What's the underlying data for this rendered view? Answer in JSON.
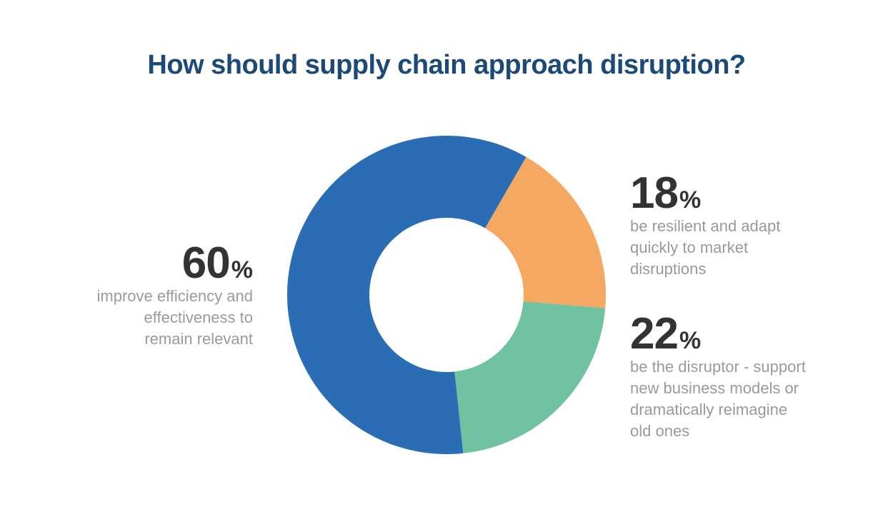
{
  "chart_data": {
    "type": "pie",
    "title": "How should supply chain approach disruption?",
    "slices": [
      {
        "label": "be resilient and adapt quickly to market disruptions",
        "value": 18,
        "display": "18",
        "color": "#f4a862",
        "lines": [
          "be resilient and adapt",
          "quickly to market",
          "disruptions"
        ]
      },
      {
        "label": "be the disruptor - support new business models or dramatically reimagine old ones",
        "value": 22,
        "display": "22",
        "color": "#70c2a0",
        "lines": [
          "be the disruptor - support",
          "new business models or",
          "dramatically reimagine",
          "old ones"
        ]
      },
      {
        "label": "improve efficiency and effectiveness to remain relevant",
        "value": 60,
        "display": "60",
        "color": "#2a6db5",
        "lines": [
          "improve efficiency and",
          "effectiveness to",
          "remain relevant"
        ]
      }
    ],
    "percent_symbol": "%",
    "donut": true
  }
}
